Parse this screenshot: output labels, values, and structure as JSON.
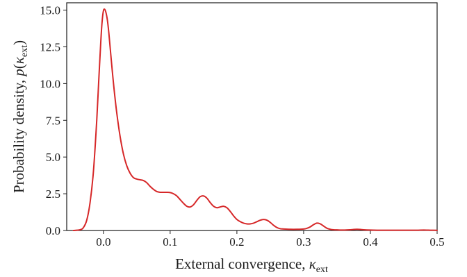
{
  "chart_data": {
    "type": "line",
    "xlabel_text": "External convergence, ",
    "xlabel_symbol": "κ",
    "xlabel_sub": "ext",
    "ylabel_text": "Probability density, ",
    "ylabel_p": "p",
    "ylabel_open": "(",
    "ylabel_symbol": "κ",
    "ylabel_sub": "ext",
    "ylabel_close": ")",
    "xlim": [
      -0.055,
      0.5
    ],
    "ylim": [
      0,
      15.5
    ],
    "xticks": [
      0.0,
      0.1,
      0.2,
      0.3,
      0.4,
      0.5
    ],
    "xtick_labels": [
      "0.0",
      "0.1",
      "0.2",
      "0.3",
      "0.4",
      "0.5"
    ],
    "yticks": [
      0,
      2.5,
      5,
      7.5,
      10,
      12.5,
      15
    ],
    "ytick_labels": [
      "0.0",
      "2.5",
      "5.0",
      "7.5",
      "10.0",
      "12.5",
      "15.0"
    ],
    "grid": false,
    "line_color": "#d62728",
    "series": [
      {
        "x": [
          -0.045,
          -0.035,
          -0.03,
          -0.025,
          -0.02,
          -0.015,
          -0.01,
          -0.007,
          -0.004,
          -0.002,
          0.0,
          0.002,
          0.004,
          0.006,
          0.008,
          0.01,
          0.013,
          0.016,
          0.02,
          0.025,
          0.03,
          0.035,
          0.04,
          0.045,
          0.05,
          0.055,
          0.06,
          0.065,
          0.07,
          0.075,
          0.08,
          0.085,
          0.09,
          0.095,
          0.1,
          0.105,
          0.11,
          0.115,
          0.12,
          0.125,
          0.13,
          0.135,
          0.14,
          0.145,
          0.15,
          0.155,
          0.16,
          0.165,
          0.17,
          0.175,
          0.18,
          0.185,
          0.19,
          0.195,
          0.2,
          0.205,
          0.21,
          0.215,
          0.22,
          0.225,
          0.23,
          0.235,
          0.24,
          0.245,
          0.25,
          0.255,
          0.26,
          0.265,
          0.27,
          0.28,
          0.29,
          0.3,
          0.305,
          0.31,
          0.315,
          0.32,
          0.325,
          0.33,
          0.335,
          0.34,
          0.345,
          0.35,
          0.36,
          0.37,
          0.375,
          0.38,
          0.385,
          0.39,
          0.4,
          0.41,
          0.42,
          0.43,
          0.44,
          0.45,
          0.46,
          0.47,
          0.48,
          0.49,
          0.5
        ],
        "y": [
          0.0,
          0.05,
          0.2,
          0.7,
          1.9,
          4.0,
          7.5,
          10.2,
          12.8,
          14.2,
          14.95,
          15.05,
          14.8,
          14.3,
          13.5,
          12.5,
          11.0,
          9.6,
          8.0,
          6.4,
          5.2,
          4.4,
          3.9,
          3.6,
          3.5,
          3.45,
          3.4,
          3.25,
          3.0,
          2.8,
          2.65,
          2.6,
          2.6,
          2.6,
          2.58,
          2.5,
          2.35,
          2.1,
          1.85,
          1.65,
          1.6,
          1.75,
          2.05,
          2.3,
          2.35,
          2.2,
          1.9,
          1.65,
          1.55,
          1.6,
          1.65,
          1.55,
          1.3,
          1.0,
          0.75,
          0.6,
          0.5,
          0.45,
          0.45,
          0.5,
          0.6,
          0.7,
          0.75,
          0.7,
          0.55,
          0.35,
          0.2,
          0.12,
          0.1,
          0.08,
          0.08,
          0.1,
          0.15,
          0.25,
          0.4,
          0.5,
          0.45,
          0.3,
          0.15,
          0.08,
          0.05,
          0.04,
          0.03,
          0.05,
          0.07,
          0.08,
          0.07,
          0.05,
          0.03,
          0.02,
          0.02,
          0.02,
          0.02,
          0.02,
          0.02,
          0.02,
          0.03,
          0.02,
          0.01
        ]
      }
    ]
  }
}
